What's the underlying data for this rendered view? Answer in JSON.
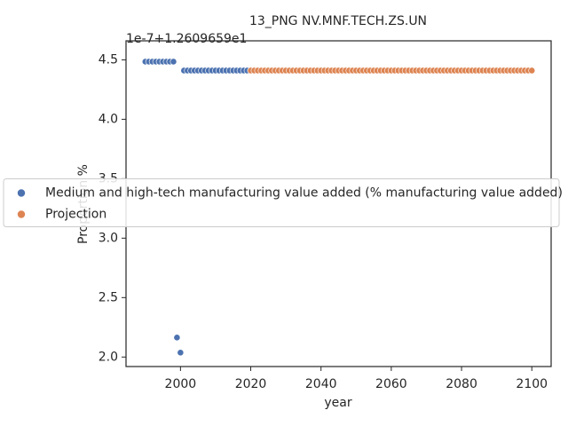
{
  "chart_data": {
    "type": "scatter",
    "title": "13_PNG NV.MNF.TECH.ZS.UN",
    "x_label": "year",
    "y_label": "Proportion %",
    "y_offset_label": "1e-7+1.2609659e1",
    "xlim": [
      1984.5,
      2105.5
    ],
    "ylim": [
      1.92,
      4.66
    ],
    "xticks": [
      2000,
      2020,
      2040,
      2060,
      2080,
      2100
    ],
    "yticks": [
      {
        "value": 2,
        "label": "2.0"
      },
      2.5,
      {
        "value": 3,
        "label": "3.0"
      },
      3.5,
      {
        "value": 4,
        "label": "4.0"
      },
      4.5
    ],
    "legend": "center left",
    "series": [
      {
        "name": "Medium and high-tech manufacturing value added (% manufacturing value added)",
        "color": "#4c72b0",
        "x": [
          1990,
          1991,
          1992,
          1993,
          1994,
          1995,
          1996,
          1997,
          1998,
          1999,
          2000,
          2001,
          2002,
          2003,
          2004,
          2005,
          2006,
          2007,
          2008,
          2009,
          2010,
          2011,
          2012,
          2013,
          2014,
          2015,
          2016,
          2017,
          2018,
          2019,
          2020
        ],
        "values": [
          4.485,
          4.485,
          4.485,
          4.485,
          4.485,
          4.485,
          4.485,
          4.485,
          4.485,
          2.164,
          2.037,
          4.41,
          4.41,
          4.41,
          4.41,
          4.41,
          4.41,
          4.41,
          4.41,
          4.41,
          4.41,
          4.41,
          4.41,
          4.41,
          4.41,
          4.41,
          4.41,
          4.41,
          4.41,
          4.41,
          4.41
        ]
      },
      {
        "name": "Projection",
        "color": "#dd8452",
        "x": [
          2020,
          2021,
          2022,
          2023,
          2024,
          2025,
          2026,
          2027,
          2028,
          2029,
          2030,
          2031,
          2032,
          2033,
          2034,
          2035,
          2036,
          2037,
          2038,
          2039,
          2040,
          2041,
          2042,
          2043,
          2044,
          2045,
          2046,
          2047,
          2048,
          2049,
          2050,
          2051,
          2052,
          2053,
          2054,
          2055,
          2056,
          2057,
          2058,
          2059,
          2060,
          2061,
          2062,
          2063,
          2064,
          2065,
          2066,
          2067,
          2068,
          2069,
          2070,
          2071,
          2072,
          2073,
          2074,
          2075,
          2076,
          2077,
          2078,
          2079,
          2080,
          2081,
          2082,
          2083,
          2084,
          2085,
          2086,
          2087,
          2088,
          2089,
          2090,
          2091,
          2092,
          2093,
          2094,
          2095,
          2096,
          2097,
          2098,
          2099,
          2100
        ],
        "values": [
          4.41,
          4.41,
          4.41,
          4.41,
          4.41,
          4.41,
          4.41,
          4.41,
          4.41,
          4.41,
          4.41,
          4.41,
          4.41,
          4.41,
          4.41,
          4.41,
          4.41,
          4.41,
          4.41,
          4.41,
          4.41,
          4.41,
          4.41,
          4.41,
          4.41,
          4.41,
          4.41,
          4.41,
          4.41,
          4.41,
          4.41,
          4.41,
          4.41,
          4.41,
          4.41,
          4.41,
          4.41,
          4.41,
          4.41,
          4.41,
          4.41,
          4.41,
          4.41,
          4.41,
          4.41,
          4.41,
          4.41,
          4.41,
          4.41,
          4.41,
          4.41,
          4.41,
          4.41,
          4.41,
          4.41,
          4.41,
          4.41,
          4.41,
          4.41,
          4.41,
          4.41,
          4.41,
          4.41,
          4.41,
          4.41,
          4.41,
          4.41,
          4.41,
          4.41,
          4.41,
          4.41,
          4.41,
          4.41,
          4.41,
          4.41,
          4.41,
          4.41,
          4.41,
          4.41,
          4.41,
          4.41
        ]
      }
    ]
  }
}
